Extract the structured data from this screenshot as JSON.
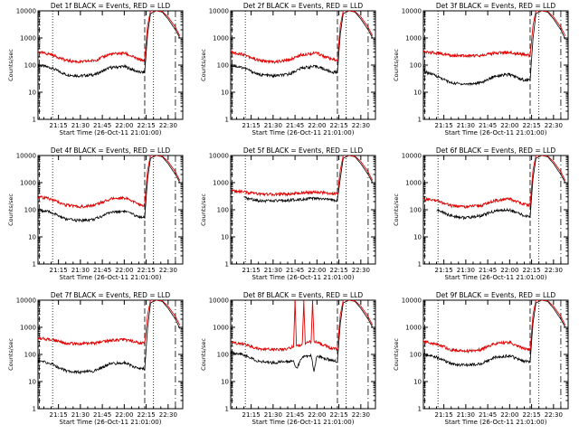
{
  "colors": {
    "events": "#000000",
    "lld": "#e00000",
    "background": "#ffffff"
  },
  "chart_data": [
    {
      "type": "line",
      "title": "Det 1f BLACK = Events, RED = LLD",
      "xlabel": "Start Time (26-Oct-11 21:01:00)",
      "ylabel": "Counts/sec",
      "x_ticks": [
        "21:15",
        "21:30",
        "21:45",
        "22:00",
        "22:15",
        "22:30"
      ],
      "y_ticks": [
        "1",
        "10",
        "100",
        "1000",
        "10000"
      ],
      "ylim": [
        1,
        10000
      ],
      "y_scale": "log",
      "series": [
        {
          "name": "Events",
          "x": [
            "21:01",
            "21:10",
            "21:20",
            "21:30",
            "21:40",
            "21:50",
            "22:00",
            "22:10",
            "22:14",
            "22:16",
            "22:18",
            "22:22",
            "22:26",
            "22:30",
            "22:35",
            "22:38"
          ],
          "values": [
            100,
            80,
            45,
            40,
            45,
            80,
            90,
            55,
            55,
            1500,
            8000,
            10000,
            9000,
            5000,
            2000,
            1000
          ]
        },
        {
          "name": "LLD",
          "x": [
            "21:01",
            "21:10",
            "21:20",
            "21:30",
            "21:40",
            "21:50",
            "22:00",
            "22:10",
            "22:14",
            "22:16",
            "22:18",
            "22:22",
            "22:26",
            "22:30",
            "22:35",
            "22:38"
          ],
          "values": [
            300,
            250,
            150,
            130,
            150,
            250,
            280,
            160,
            150,
            3000,
            10000,
            10000,
            9500,
            6000,
            2500,
            1200
          ]
        }
      ]
    },
    {
      "type": "line",
      "title": "Det 2f BLACK = Events, RED = LLD",
      "xlabel": "Start Time (26-Oct-11 21:01:00)",
      "ylabel": "Counts/sec",
      "x_ticks": [
        "21:15",
        "21:30",
        "21:45",
        "22:00",
        "22:15",
        "22:30"
      ],
      "y_ticks": [
        "1",
        "10",
        "100",
        "1000",
        "10000"
      ],
      "ylim": [
        1,
        10000
      ],
      "y_scale": "log",
      "series": [
        {
          "name": "Events",
          "x": [
            "21:01",
            "21:10",
            "21:20",
            "21:30",
            "21:40",
            "21:50",
            "22:00",
            "22:10",
            "22:14",
            "22:16",
            "22:18",
            "22:22",
            "22:26",
            "22:30",
            "22:35",
            "22:38"
          ],
          "values": [
            100,
            80,
            45,
            40,
            45,
            80,
            90,
            55,
            55,
            1500,
            8000,
            10000,
            9000,
            5000,
            2000,
            1000
          ]
        },
        {
          "name": "LLD",
          "x": [
            "21:01",
            "21:10",
            "21:20",
            "21:30",
            "21:40",
            "21:50",
            "22:00",
            "22:10",
            "22:14",
            "22:16",
            "22:18",
            "22:22",
            "22:26",
            "22:30",
            "22:35",
            "22:38"
          ],
          "values": [
            300,
            250,
            150,
            130,
            150,
            250,
            280,
            160,
            150,
            3000,
            10000,
            10000,
            9500,
            6000,
            2500,
            1200
          ]
        }
      ]
    },
    {
      "type": "line",
      "title": "Det 3f BLACK = Events, RED = LLD",
      "xlabel": "Start Time (26-Oct-11 21:01:00)",
      "ylabel": "Counts/sec",
      "x_ticks": [
        "21:15",
        "21:30",
        "21:45",
        "22:00",
        "22:15",
        "22:30"
      ],
      "y_ticks": [
        "1",
        "10",
        "100",
        "1000",
        "10000"
      ],
      "ylim": [
        1,
        10000
      ],
      "y_scale": "log",
      "series": [
        {
          "name": "Events",
          "x": [
            "21:01",
            "21:10",
            "21:20",
            "21:30",
            "21:40",
            "21:50",
            "22:00",
            "22:10",
            "22:14",
            "22:16",
            "22:18",
            "22:22",
            "22:26",
            "22:30",
            "22:35",
            "22:38"
          ],
          "values": [
            60,
            40,
            22,
            20,
            22,
            40,
            45,
            28,
            28,
            1000,
            8000,
            10000,
            9000,
            5000,
            2000,
            900
          ]
        },
        {
          "name": "LLD",
          "x": [
            "21:01",
            "21:10",
            "21:20",
            "21:30",
            "21:40",
            "21:50",
            "22:00",
            "22:10",
            "22:14",
            "22:16",
            "22:18",
            "22:22",
            "22:26",
            "22:30",
            "22:35",
            "22:38"
          ],
          "values": [
            300,
            280,
            230,
            220,
            230,
            280,
            300,
            240,
            230,
            3000,
            10000,
            10000,
            9500,
            6000,
            2500,
            1200
          ]
        }
      ]
    },
    {
      "type": "line",
      "title": "Det 4f BLACK = Events, RED = LLD",
      "xlabel": "Start Time (26-Oct-11 21:01:00)",
      "ylabel": "Counts/sec",
      "x_ticks": [
        "21:15",
        "21:30",
        "21:45",
        "22:00",
        "22:15",
        "22:30"
      ],
      "y_ticks": [
        "1",
        "10",
        "100",
        "1000",
        "10000"
      ],
      "ylim": [
        1,
        10000
      ],
      "y_scale": "log",
      "series": [
        {
          "name": "Events",
          "x": [
            "21:01",
            "21:10",
            "21:20",
            "21:30",
            "21:40",
            "21:50",
            "22:00",
            "22:10",
            "22:14",
            "22:16",
            "22:18",
            "22:22",
            "22:26",
            "22:30",
            "22:35",
            "22:38"
          ],
          "values": [
            100,
            80,
            45,
            40,
            45,
            80,
            90,
            55,
            55,
            1500,
            8000,
            10000,
            9000,
            5000,
            2000,
            1000
          ]
        },
        {
          "name": "LLD",
          "x": [
            "21:01",
            "21:10",
            "21:20",
            "21:30",
            "21:40",
            "21:50",
            "22:00",
            "22:10",
            "22:14",
            "22:16",
            "22:18",
            "22:22",
            "22:26",
            "22:30",
            "22:35",
            "22:38"
          ],
          "values": [
            300,
            250,
            150,
            130,
            150,
            250,
            280,
            160,
            150,
            3000,
            10000,
            10000,
            9500,
            6000,
            2500,
            1200
          ]
        }
      ]
    },
    {
      "type": "line",
      "title": "Det 5f BLACK = Events, RED = LLD",
      "xlabel": "Start Time (26-Oct-11 21:01:00)",
      "ylabel": "Counts/sec",
      "x_ticks": [
        "21:15",
        "21:30",
        "21:45",
        "22:00",
        "22:15",
        "22:30"
      ],
      "y_ticks": [
        "1",
        "10",
        "100",
        "1000",
        "10000"
      ],
      "ylim": [
        1,
        10000
      ],
      "y_scale": "log",
      "series": [
        {
          "name": "Events",
          "x": [
            "21:10",
            "21:20",
            "21:30",
            "21:40",
            "21:50",
            "22:00",
            "22:10",
            "22:14",
            "22:16",
            "22:18",
            "22:22",
            "22:26",
            "22:30",
            "22:35",
            "22:38"
          ],
          "values": [
            280,
            220,
            210,
            220,
            250,
            260,
            230,
            220,
            1500,
            8000,
            10000,
            9000,
            5000,
            2000,
            1000
          ]
        },
        {
          "name": "LLD",
          "x": [
            "21:01",
            "21:10",
            "21:20",
            "21:30",
            "21:40",
            "21:50",
            "22:00",
            "22:10",
            "22:14",
            "22:16",
            "22:18",
            "22:22",
            "22:26",
            "22:30",
            "22:35",
            "22:38"
          ],
          "values": [
            500,
            450,
            380,
            370,
            380,
            420,
            450,
            400,
            380,
            3000,
            10000,
            10000,
            9500,
            6000,
            2500,
            1200
          ]
        }
      ]
    },
    {
      "type": "line",
      "title": "Det 6f BLACK = Events, RED = LLD",
      "xlabel": "Start Time (26-Oct-11 21:01:00)",
      "ylabel": "Counts/sec",
      "x_ticks": [
        "21:15",
        "21:30",
        "21:45",
        "22:00",
        "22:15",
        "22:30"
      ],
      "y_ticks": [
        "1",
        "10",
        "100",
        "1000",
        "10000"
      ],
      "ylim": [
        1,
        10000
      ],
      "y_scale": "log",
      "series": [
        {
          "name": "Events",
          "x": [
            "21:10",
            "21:20",
            "21:30",
            "21:40",
            "21:50",
            "22:00",
            "22:10",
            "22:14",
            "22:16",
            "22:18",
            "22:22",
            "22:26",
            "22:30",
            "22:35",
            "22:38"
          ],
          "values": [
            100,
            60,
            50,
            60,
            90,
            100,
            60,
            55,
            1500,
            8000,
            10000,
            9000,
            5000,
            2000,
            1000
          ]
        },
        {
          "name": "LLD",
          "x": [
            "21:01",
            "21:10",
            "21:20",
            "21:30",
            "21:40",
            "21:50",
            "22:00",
            "22:10",
            "22:14",
            "22:16",
            "22:18",
            "22:22",
            "22:26",
            "22:30",
            "22:35",
            "22:38"
          ],
          "values": [
            250,
            220,
            140,
            130,
            140,
            220,
            250,
            160,
            150,
            3000,
            10000,
            10000,
            9500,
            6000,
            2500,
            1200
          ]
        }
      ]
    },
    {
      "type": "line",
      "title": "Det 7f BLACK = Events, RED = LLD",
      "xlabel": "Start Time (26-Oct-11 21:01:00)",
      "ylabel": "Counts/sec",
      "x_ticks": [
        "21:15",
        "21:30",
        "21:45",
        "22:00",
        "22:15",
        "22:30"
      ],
      "y_ticks": [
        "1",
        "10",
        "100",
        "1000",
        "10000"
      ],
      "ylim": [
        1,
        10000
      ],
      "y_scale": "log",
      "series": [
        {
          "name": "Events",
          "x": [
            "21:01",
            "21:10",
            "21:20",
            "21:30",
            "21:40",
            "21:50",
            "22:00",
            "22:10",
            "22:14",
            "22:16",
            "22:18",
            "22:22",
            "22:26",
            "22:30",
            "22:35",
            "22:38"
          ],
          "values": [
            60,
            45,
            25,
            22,
            25,
            45,
            50,
            30,
            30,
            1000,
            8000,
            10000,
            9000,
            5000,
            2000,
            900
          ]
        },
        {
          "name": "LLD",
          "x": [
            "21:01",
            "21:10",
            "21:20",
            "21:30",
            "21:40",
            "21:50",
            "22:00",
            "22:10",
            "22:14",
            "22:16",
            "22:18",
            "22:22",
            "22:26",
            "22:30",
            "22:35",
            "22:38"
          ],
          "values": [
            400,
            360,
            260,
            250,
            260,
            330,
            360,
            270,
            260,
            3000,
            10000,
            10000,
            9500,
            6000,
            2500,
            1200
          ]
        }
      ]
    },
    {
      "type": "line",
      "title": "Det 8f BLACK = Events, RED = LLD",
      "xlabel": "Start Time (26-Oct-11 21:01:00)",
      "ylabel": "Counts/sec",
      "x_ticks": [
        "21:15",
        "21:30",
        "21:45",
        "22:00",
        "22:15",
        "22:30"
      ],
      "y_ticks": [
        "1",
        "10",
        "100",
        "1000",
        "10000"
      ],
      "ylim": [
        1,
        10000
      ],
      "y_scale": "log",
      "series": [
        {
          "name": "Events",
          "x": [
            "21:01",
            "21:10",
            "21:20",
            "21:30",
            "21:40",
            "21:44",
            "21:46",
            "21:50",
            "21:56",
            "21:58",
            "22:00",
            "22:10",
            "22:14",
            "22:16",
            "22:18",
            "22:22",
            "22:26",
            "22:30",
            "22:35",
            "22:38"
          ],
          "values": [
            120,
            100,
            55,
            50,
            55,
            60,
            30,
            80,
            90,
            25,
            90,
            60,
            55,
            1500,
            8000,
            10000,
            9000,
            5000,
            2000,
            1000
          ]
        },
        {
          "name": "LLD",
          "x": [
            "21:01",
            "21:10",
            "21:20",
            "21:30",
            "21:40",
            "21:44",
            "21:45",
            "21:46",
            "21:50",
            "21:51",
            "21:52",
            "21:56",
            "21:57",
            "21:58",
            "22:00",
            "22:10",
            "22:14",
            "22:16",
            "22:18",
            "22:22",
            "22:26",
            "22:30",
            "22:35",
            "22:38"
          ],
          "values": [
            270,
            240,
            160,
            150,
            160,
            200,
            10000,
            200,
            250,
            10000,
            250,
            300,
            10000,
            300,
            280,
            170,
            160,
            3000,
            10000,
            10000,
            9500,
            6000,
            2500,
            1200
          ]
        }
      ]
    },
    {
      "type": "line",
      "title": "Det 9f BLACK = Events, RED = LLD",
      "xlabel": "Start Time (26-Oct-11 21:01:00)",
      "ylabel": "Counts/sec",
      "x_ticks": [
        "21:15",
        "21:30",
        "21:45",
        "22:00",
        "22:15",
        "22:30"
      ],
      "y_ticks": [
        "1",
        "10",
        "100",
        "1000",
        "10000"
      ],
      "ylim": [
        1,
        10000
      ],
      "y_scale": "log",
      "series": [
        {
          "name": "Events",
          "x": [
            "21:01",
            "21:10",
            "21:20",
            "21:30",
            "21:40",
            "21:50",
            "22:00",
            "22:10",
            "22:14",
            "22:16",
            "22:18",
            "22:22",
            "22:26",
            "22:30",
            "22:35",
            "22:38"
          ],
          "values": [
            100,
            80,
            45,
            40,
            45,
            80,
            90,
            55,
            55,
            1500,
            8000,
            10000,
            9000,
            5000,
            2000,
            1000
          ]
        },
        {
          "name": "LLD",
          "x": [
            "21:01",
            "21:10",
            "21:20",
            "21:30",
            "21:40",
            "21:50",
            "22:00",
            "22:10",
            "22:14",
            "22:16",
            "22:18",
            "22:22",
            "22:26",
            "22:30",
            "22:35",
            "22:38"
          ],
          "values": [
            300,
            250,
            150,
            130,
            150,
            250,
            280,
            160,
            150,
            3000,
            10000,
            10000,
            9500,
            6000,
            2500,
            1200
          ]
        }
      ]
    }
  ]
}
